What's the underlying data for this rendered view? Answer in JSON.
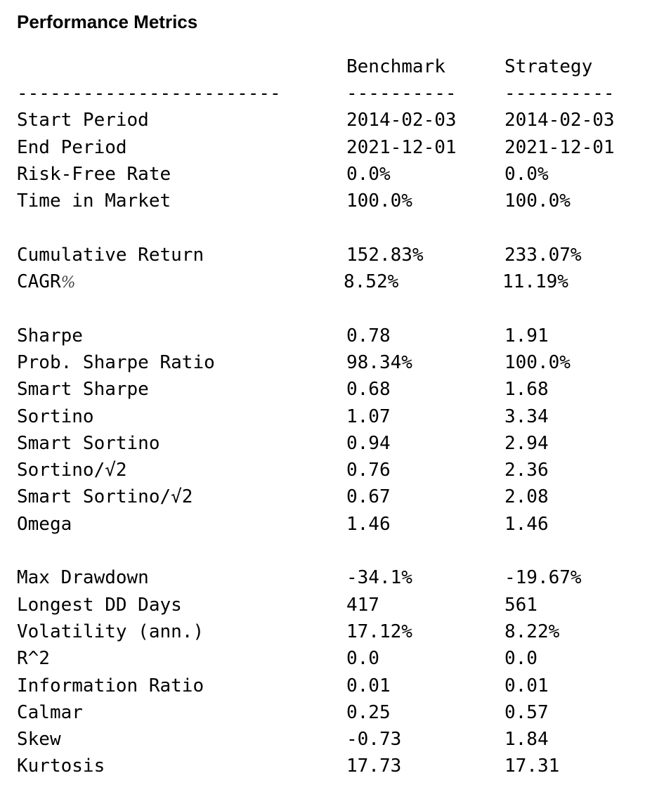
{
  "title": "Performance Metrics",
  "columns": {
    "benchmark": "Benchmark",
    "strategy": "Strategy"
  },
  "separators": {
    "label": "------------------------",
    "benchmark": "----------",
    "strategy": "----------"
  },
  "groups": [
    [
      {
        "label": "Start Period",
        "benchmark": "2014-02-03",
        "strategy": "2014-02-03"
      },
      {
        "label": "End Period",
        "benchmark": "2021-12-01",
        "strategy": "2021-12-01"
      },
      {
        "label": "Risk-Free Rate",
        "benchmark": "0.0%",
        "strategy": "0.0%"
      },
      {
        "label": "Time in Market",
        "benchmark": "100.0%",
        "strategy": "100.0%"
      }
    ],
    [
      {
        "label": "Cumulative Return",
        "benchmark": "152.83%",
        "strategy": "233.07%"
      },
      {
        "label": "CAGR",
        "label_suffix": "%",
        "benchmark": "8.52%",
        "strategy": "11.19%"
      }
    ],
    [
      {
        "label": "Sharpe",
        "benchmark": "0.78",
        "strategy": "1.91"
      },
      {
        "label": "Prob. Sharpe Ratio",
        "benchmark": "98.34%",
        "strategy": "100.0%"
      },
      {
        "label": "Smart Sharpe",
        "benchmark": "0.68",
        "strategy": "1.68"
      },
      {
        "label": "Sortino",
        "benchmark": "1.07",
        "strategy": "3.34"
      },
      {
        "label": "Smart Sortino",
        "benchmark": "0.94",
        "strategy": "2.94"
      },
      {
        "label": "Sortino/√2",
        "benchmark": "0.76",
        "strategy": "2.36"
      },
      {
        "label": "Smart Sortino/√2",
        "benchmark": "0.67",
        "strategy": "2.08"
      },
      {
        "label": "Omega",
        "benchmark": "1.46",
        "strategy": "1.46"
      }
    ],
    [
      {
        "label": "Max Drawdown",
        "benchmark": "-34.1%",
        "strategy": "-19.67%"
      },
      {
        "label": "Longest DD Days",
        "benchmark": "417",
        "strategy": "561"
      },
      {
        "label": "Volatility (ann.)",
        "benchmark": "17.12%",
        "strategy": "8.22%"
      },
      {
        "label": "R^2",
        "benchmark": "0.0",
        "strategy": "0.0"
      },
      {
        "label": "Information Ratio",
        "benchmark": "0.01",
        "strategy": "0.01"
      },
      {
        "label": "Calmar",
        "benchmark": "0.25",
        "strategy": "0.57"
      },
      {
        "label": "Skew",
        "benchmark": "-0.73",
        "strategy": "1.84"
      },
      {
        "label": "Kurtosis",
        "benchmark": "17.73",
        "strategy": "17.31"
      }
    ]
  ]
}
